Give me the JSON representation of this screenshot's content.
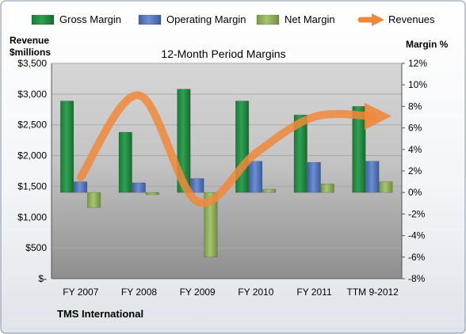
{
  "chart_data": {
    "type": "bar",
    "title": "12-Month Period Margins",
    "company": "TMS International",
    "categories": [
      "FY 2007",
      "FY 2008",
      "FY 2009",
      "FY 2010",
      "FY 2011",
      "TTM 9-2012"
    ],
    "left_axis": {
      "label_line1": "Revenue",
      "label_line2": "$millions",
      "range": [
        0,
        3500
      ],
      "ticks": [
        0,
        500,
        1000,
        1500,
        2000,
        2500,
        3000,
        3500
      ],
      "tick_labels": [
        "$-",
        "$500",
        "$1,000",
        "$1,500",
        "$2,000",
        "$2,500",
        "$3,000",
        "$3,500"
      ]
    },
    "right_axis": {
      "label": "Margin %",
      "range": [
        -8,
        12
      ],
      "ticks": [
        -8,
        -6,
        -4,
        -2,
        0,
        2,
        4,
        6,
        8,
        10,
        12
      ],
      "tick_labels": [
        "-8%",
        "-6%",
        "-4%",
        "-2%",
        "0%",
        "2%",
        "4%",
        "6%",
        "8%",
        "10%",
        "12%"
      ]
    },
    "series": [
      {
        "name": "Gross Margin",
        "axis": "right",
        "kind": "bar",
        "color": "#1e8a3e",
        "values": [
          8.5,
          5.6,
          9.6,
          8.5,
          7.2,
          8.0
        ]
      },
      {
        "name": "Operating Margin",
        "axis": "right",
        "kind": "bar",
        "color": "#4a6fb5",
        "values": [
          1.0,
          0.9,
          1.3,
          2.9,
          2.8,
          2.9
        ]
      },
      {
        "name": "Net Margin",
        "axis": "right",
        "kind": "bar",
        "color": "#8cb05a",
        "values": [
          -1.4,
          -0.2,
          -6.0,
          0.3,
          0.8,
          1.0
        ]
      },
      {
        "name": "Revenues",
        "axis": "left",
        "kind": "line",
        "color": "#f0883a",
        "values": [
          1650,
          2980,
          1250,
          2040,
          2630,
          2640
        ]
      }
    ],
    "legend_position": "top",
    "grid": true
  }
}
